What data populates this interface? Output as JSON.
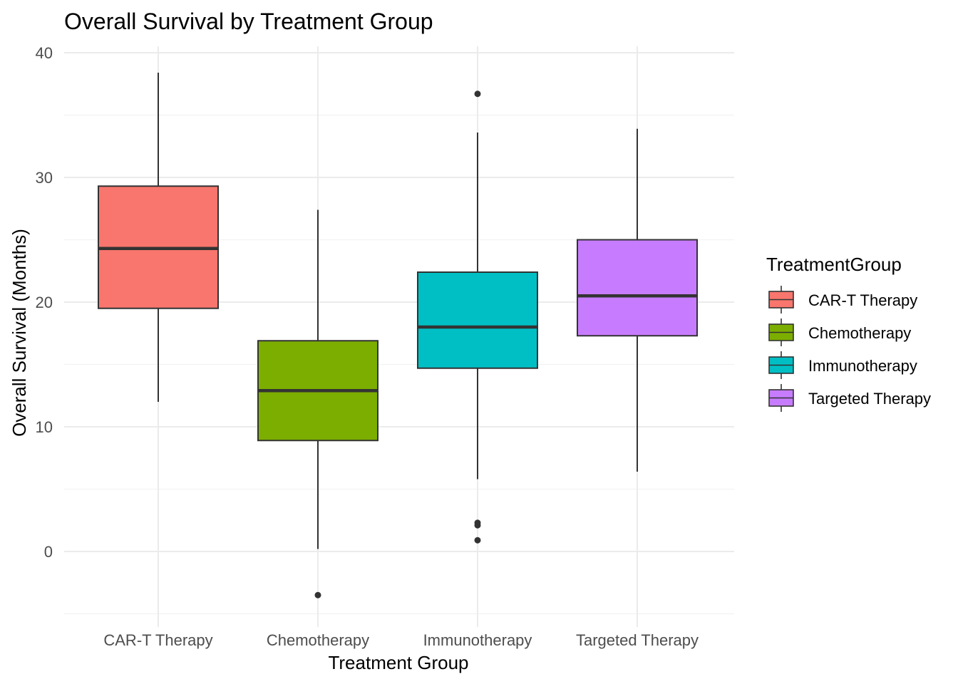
{
  "chart_data": {
    "type": "boxplot",
    "title": "Overall Survival by Treatment Group",
    "xlabel": "Treatment Group",
    "ylabel": "Overall Survival (Months)",
    "ylim": [
      -5,
      41
    ],
    "yticks": [
      0,
      10,
      20,
      30,
      40
    ],
    "grid": true,
    "legend": {
      "title": "TreatmentGroup",
      "placement": "right"
    },
    "categories": [
      "CAR-T Therapy",
      "Chemotherapy",
      "Immunotherapy",
      "Targeted Therapy"
    ],
    "colors": [
      "#F8766D",
      "#7CAE00",
      "#00BFC4",
      "#C77CFF"
    ],
    "boxes": [
      {
        "name": "CAR-T Therapy",
        "whisker_low": 12.0,
        "q1": 19.5,
        "median": 24.3,
        "q3": 29.3,
        "whisker_high": 38.4,
        "outliers": []
      },
      {
        "name": "Chemotherapy",
        "whisker_low": 0.2,
        "q1": 8.9,
        "median": 12.9,
        "q3": 16.9,
        "whisker_high": 27.4,
        "outliers": [
          -3.5
        ]
      },
      {
        "name": "Immunotherapy",
        "whisker_low": 5.8,
        "q1": 14.7,
        "median": 18.0,
        "q3": 22.4,
        "whisker_high": 33.6,
        "outliers": [
          36.7,
          2.3,
          2.1,
          0.9
        ]
      },
      {
        "name": "Targeted Therapy",
        "whisker_low": 6.4,
        "q1": 17.3,
        "median": 20.5,
        "q3": 25.0,
        "whisker_high": 33.9,
        "outliers": []
      }
    ]
  }
}
